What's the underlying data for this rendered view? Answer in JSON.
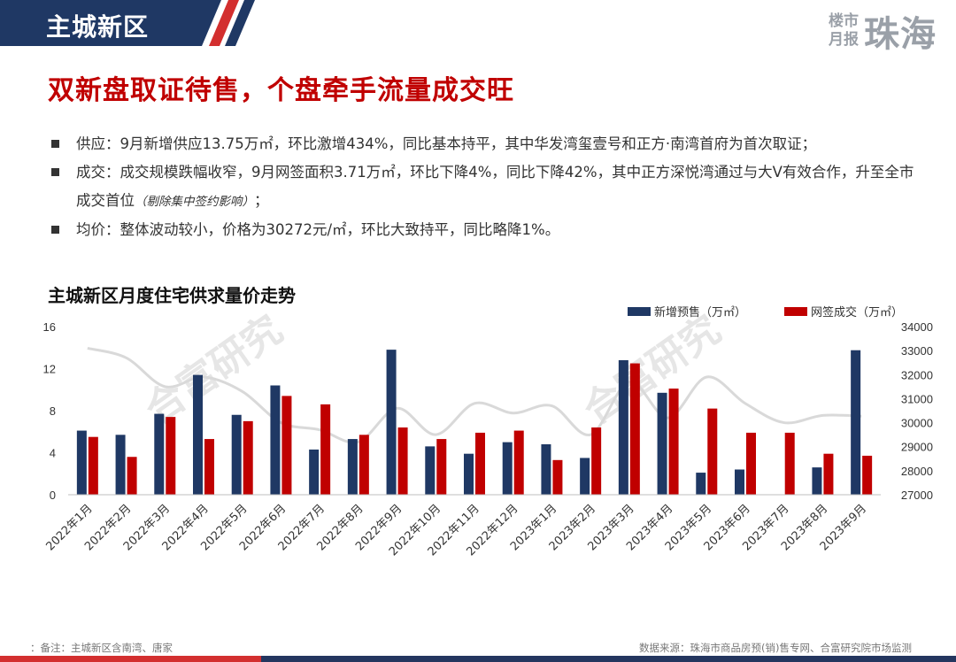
{
  "header": {
    "section_title": "主城新区",
    "brand_small_1": "楼市",
    "brand_small_2": "月报",
    "brand_big": "珠海",
    "accent_navy": "#1f3864",
    "accent_red": "#c00000"
  },
  "headline": "双新盘取证待售，个盘牵手流量成交旺",
  "bullets": [
    {
      "text": "供应：9月新增供应13.75万㎡，环比激增434%，同比基本持平，其中华发湾玺壹号和正方·南湾首府为首次取证；",
      "note": ""
    },
    {
      "text": "成交：成交规模跌幅收窄，9月网签面积3.71万㎡，环比下降4%，同比下降42%，其中正方深悦湾通过与大V有效合作，升至全市成交首位",
      "note": "（剔除集中签约影响）",
      "tail": "；"
    },
    {
      "text": "均价：整体波动较小，价格为30272元/㎡，环比大致持平，同比略降1%。",
      "note": ""
    }
  ],
  "chart_title": "主城新区月度住宅供求量价走势",
  "watermark": "合富研究",
  "footer": {
    "note": "：备注：主城新区含南湾、唐家",
    "source": "数据来源：珠海市商品房预(销)售专网、合富研究院市场监测"
  },
  "chart_data": {
    "type": "bar",
    "categories": [
      "2022年1月",
      "2022年2月",
      "2022年3月",
      "2022年4月",
      "2022年5月",
      "2022年6月",
      "2022年7月",
      "2022年8月",
      "2022年9月",
      "2022年10月",
      "2022年11月",
      "2022年12月",
      "2023年1月",
      "2023年2月",
      "2023年3月",
      "2023年4月",
      "2023年5月",
      "2023年6月",
      "2023年7月",
      "2023年8月",
      "2023年9月"
    ],
    "series": [
      {
        "name": "新增预售（万㎡）",
        "color": "#1f3864",
        "axis": "left",
        "values": [
          6.1,
          5.7,
          7.7,
          11.4,
          7.6,
          10.4,
          4.3,
          5.3,
          13.8,
          4.6,
          3.9,
          5.0,
          4.8,
          3.5,
          12.8,
          9.7,
          2.1,
          2.4,
          0,
          2.6,
          13.75
        ]
      },
      {
        "name": "网签成交（万㎡）",
        "color": "#c00000",
        "axis": "left",
        "values": [
          5.5,
          3.6,
          7.4,
          5.3,
          7.0,
          9.4,
          8.6,
          5.7,
          6.4,
          5.3,
          5.9,
          6.1,
          3.3,
          6.4,
          12.5,
          10.1,
          8.2,
          5.9,
          5.9,
          3.9,
          3.71
        ]
      },
      {
        "name": "",
        "color": "#d9d9d9",
        "axis": "right",
        "type": "line",
        "values": [
          33100,
          32700,
          31500,
          31900,
          31300,
          30000,
          29700,
          29200,
          30600,
          29500,
          30800,
          30400,
          30700,
          29500,
          31700,
          30200,
          31900,
          30800,
          30000,
          30300,
          30272
        ]
      }
    ],
    "y_left": {
      "min": 0,
      "max": 16,
      "ticks": [
        0,
        4,
        8,
        12,
        16
      ]
    },
    "y_right": {
      "min": 27000,
      "max": 34000,
      "ticks": [
        27000,
        28000,
        29000,
        30000,
        31000,
        32000,
        33000,
        34000
      ]
    },
    "grid": false,
    "legend_position": "top-right"
  }
}
